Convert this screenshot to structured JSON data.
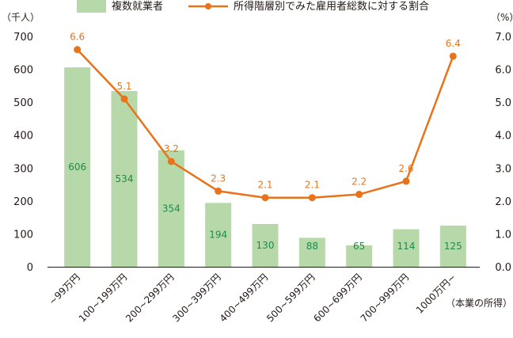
{
  "chart_data": {
    "type": "bar+line",
    "categories": [
      "~99万円",
      "100~199万円",
      "200~299万円",
      "300~399万円",
      "400~499万円",
      "500~599万円",
      "600~699万円",
      "700~999万円",
      "1000万円~"
    ],
    "series": [
      {
        "name": "複数就業者",
        "type": "bar",
        "axis": "left",
        "values": [
          606,
          534,
          354,
          194,
          130,
          88,
          65,
          114,
          125
        ]
      },
      {
        "name": "所得階層別でみた雇用者総数に対する割合",
        "type": "line",
        "axis": "right",
        "values": [
          6.6,
          5.1,
          3.2,
          2.3,
          2.1,
          2.1,
          2.2,
          2.6,
          6.4
        ]
      }
    ],
    "y_left": {
      "unit": "（千人）",
      "lim": [
        0,
        700
      ],
      "ticks": [
        "0",
        "100",
        "200",
        "300",
        "400",
        "500",
        "600",
        "700"
      ]
    },
    "y_right": {
      "unit": "（%）",
      "lim": [
        0,
        7
      ],
      "ticks": [
        "0.0",
        "1.0",
        "2.0",
        "3.0",
        "4.0",
        "5.0",
        "6.0",
        "7.0"
      ]
    },
    "xlabel": "（本業の所得）",
    "legend_position": "top",
    "grid": false,
    "colors": {
      "bar": "#b7d9a9",
      "bar_label": "#1f8a4c",
      "line": "#e8731a",
      "axis": "#231815"
    }
  }
}
